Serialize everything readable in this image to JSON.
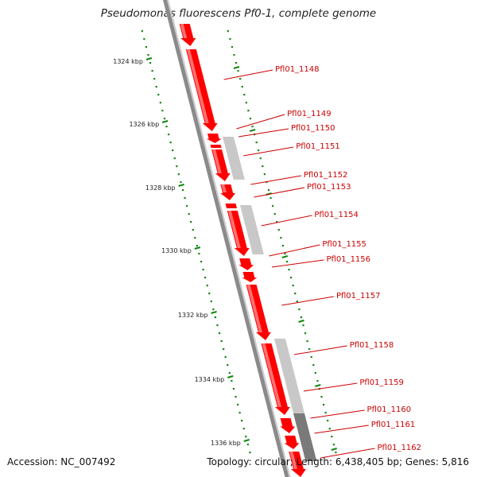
{
  "title": "Pseudomonas fluorescens Pf0-1, complete genome",
  "footer": {
    "accession": "Accession: NC_007492",
    "summary": "Topology: circular; Length: 6,438,405 bp; Genes: 5,816"
  },
  "colors": {
    "gene_forward": "#ff0000",
    "gene_other_strand_light": "#c8c8c8",
    "gene_other_strand_dark": "#7a7a7a",
    "backbone": "#8a8a8a",
    "scale_ticks": "#118811",
    "label_text": "#cc0000"
  },
  "scale_marks": [
    "1324 kbp",
    "1326 kbp",
    "1328 kbp",
    "1330 kbp",
    "1332 kbp",
    "1334 kbp",
    "1336 kbp"
  ],
  "gene_labels": [
    "Pfl01_1148",
    "Pfl01_1149",
    "Pfl01_1150",
    "Pfl01_1151",
    "Pfl01_1152",
    "Pfl01_1153",
    "Pfl01_1154",
    "Pfl01_1155",
    "Pfl01_1156",
    "Pfl01_1157",
    "Pfl01_1158",
    "Pfl01_1159",
    "Pfl01_1160",
    "Pfl01_1161",
    "Pfl01_1162"
  ]
}
